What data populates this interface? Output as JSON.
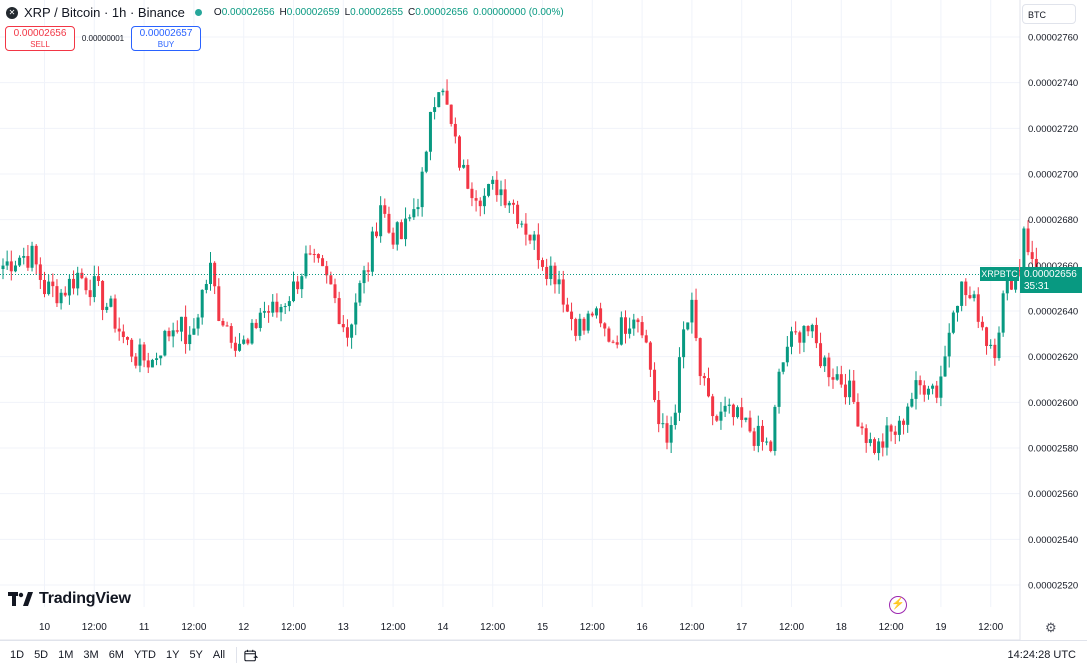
{
  "header": {
    "symbol_badge": "✕",
    "title": "XRP / Bitcoin · 1h · Binance",
    "ohlc": [
      {
        "key": "O",
        "value": "0.00002656"
      },
      {
        "key": "H",
        "value": "0.00002659"
      },
      {
        "key": "L",
        "value": "0.00002655"
      },
      {
        "key": "C",
        "value": "0.00002656"
      },
      {
        "key": "",
        "value": "0.00000000 (0.00%)"
      }
    ]
  },
  "trade": {
    "sell_price": "0.00002656",
    "sell_label": "SELL",
    "spread": "0.00000001",
    "buy_price": "0.00002657",
    "buy_label": "BUY"
  },
  "currency_selector": "BTC",
  "logo_text": "TradingView",
  "price_tag": {
    "symbol": "XRPBTC",
    "price": "0.00002656",
    "countdown": "35:31"
  },
  "time_ranges": [
    "1D",
    "5D",
    "1M",
    "3M",
    "6M",
    "YTD",
    "1Y",
    "5Y",
    "All"
  ],
  "utc_time": "14:24:28 UTC",
  "icons": {
    "settings": "gear-icon",
    "date_range": "calendar-icon",
    "bolt": "lightning-icon",
    "logo": "tradingview-logo-icon"
  },
  "colors": {
    "up": "#089981",
    "down": "#f23645",
    "grid": "#f0f3fa",
    "axis_text": "#131722"
  },
  "chart_data": {
    "type": "candlestick",
    "title": "XRP / Bitcoin · 1h · Binance",
    "xlabel": "",
    "ylabel": "",
    "ylim": [
      2.51e-05,
      2.77e-05
    ],
    "y_ticks": [
      "0.00002760",
      "0.00002740",
      "0.00002720",
      "0.00002700",
      "0.00002680",
      "0.00002660",
      "0.00002640",
      "0.00002620",
      "0.00002600",
      "0.00002580",
      "0.00002560",
      "0.00002540",
      "0.00002520"
    ],
    "x_ticks": [
      "10",
      "12:00",
      "11",
      "12:00",
      "12",
      "12:00",
      "13",
      "12:00",
      "14",
      "12:00",
      "15",
      "12:00",
      "16",
      "12:00",
      "17",
      "12:00",
      "18",
      "12:00",
      "19",
      "12:00"
    ],
    "x_start": "9 14:00",
    "bar_interval": "1h",
    "current_price": 2.656e-05,
    "grid": true,
    "series": [
      {
        "close_points": [
          [
            0,
            2.66
          ],
          [
            4,
            2.664
          ],
          [
            7,
            2.664
          ],
          [
            10,
            2.65
          ],
          [
            14,
            2.648
          ],
          [
            18,
            2.656
          ],
          [
            22,
            2.65
          ],
          [
            26,
            2.64
          ],
          [
            29,
            2.628
          ],
          [
            32,
            2.62
          ],
          [
            36,
            2.618
          ],
          [
            39,
            2.628
          ],
          [
            42,
            2.636
          ],
          [
            45,
            2.625
          ],
          [
            48,
            2.648
          ],
          [
            50,
            2.658
          ],
          [
            52,
            2.64
          ],
          [
            56,
            2.628
          ],
          [
            59,
            2.624
          ],
          [
            62,
            2.64
          ],
          [
            66,
            2.64
          ],
          [
            70,
            2.65
          ],
          [
            73,
            2.662
          ],
          [
            76,
            2.658
          ],
          [
            79,
            2.65
          ],
          [
            81,
            2.64
          ],
          [
            83,
            2.63
          ],
          [
            85,
            2.645
          ],
          [
            88,
            2.66
          ],
          [
            91,
            2.688
          ],
          [
            93,
            2.675
          ],
          [
            96,
            2.672
          ],
          [
            98,
            2.68
          ],
          [
            100,
            2.69
          ],
          [
            102,
            2.705
          ],
          [
            103,
            2.73
          ],
          [
            105,
            2.74
          ],
          [
            107,
            2.728
          ],
          [
            109,
            2.712
          ],
          [
            111,
            2.7
          ],
          [
            113,
            2.695
          ],
          [
            116,
            2.69
          ],
          [
            119,
            2.695
          ],
          [
            122,
            2.69
          ],
          [
            125,
            2.68
          ],
          [
            128,
            2.67
          ],
          [
            131,
            2.66
          ],
          [
            134,
            2.655
          ],
          [
            136,
            2.64
          ],
          [
            138,
            2.635
          ],
          [
            140,
            2.632
          ],
          [
            142,
            2.64
          ],
          [
            144,
            2.632
          ],
          [
            147,
            2.628
          ],
          [
            150,
            2.635
          ],
          [
            152,
            2.64
          ],
          [
            154,
            2.635
          ],
          [
            156,
            2.615
          ],
          [
            158,
            2.59
          ],
          [
            160,
            2.582
          ],
          [
            162,
            2.6
          ],
          [
            164,
            2.63
          ],
          [
            166,
            2.64
          ],
          [
            168,
            2.612
          ],
          [
            170,
            2.598
          ],
          [
            172,
            2.592
          ],
          [
            174,
            2.595
          ],
          [
            177,
            2.592
          ],
          [
            180,
            2.588
          ],
          [
            183,
            2.582
          ],
          [
            185,
            2.58
          ],
          [
            187,
            2.61
          ],
          [
            189,
            2.625
          ],
          [
            191,
            2.628
          ],
          [
            193,
            2.635
          ],
          [
            195,
            2.628
          ],
          [
            197,
            2.62
          ],
          [
            199,
            2.615
          ],
          [
            201,
            2.612
          ],
          [
            203,
            2.608
          ],
          [
            205,
            2.6
          ],
          [
            207,
            2.59
          ],
          [
            209,
            2.582
          ],
          [
            211,
            2.58
          ],
          [
            213,
            2.585
          ],
          [
            216,
            2.588
          ],
          [
            218,
            2.6
          ],
          [
            220,
            2.605
          ],
          [
            223,
            2.61
          ],
          [
            225,
            2.605
          ],
          [
            227,
            2.62
          ],
          [
            229,
            2.645
          ],
          [
            231,
            2.65
          ],
          [
            233,
            2.645
          ],
          [
            235,
            2.64
          ],
          [
            237,
            2.628
          ],
          [
            239,
            2.625
          ],
          [
            241,
            2.645
          ],
          [
            243,
            2.655
          ],
          [
            245,
            2.66
          ],
          [
            246,
            2.678
          ],
          [
            248,
            2.66
          ],
          [
            250,
            2.656
          ]
        ]
      }
    ]
  }
}
